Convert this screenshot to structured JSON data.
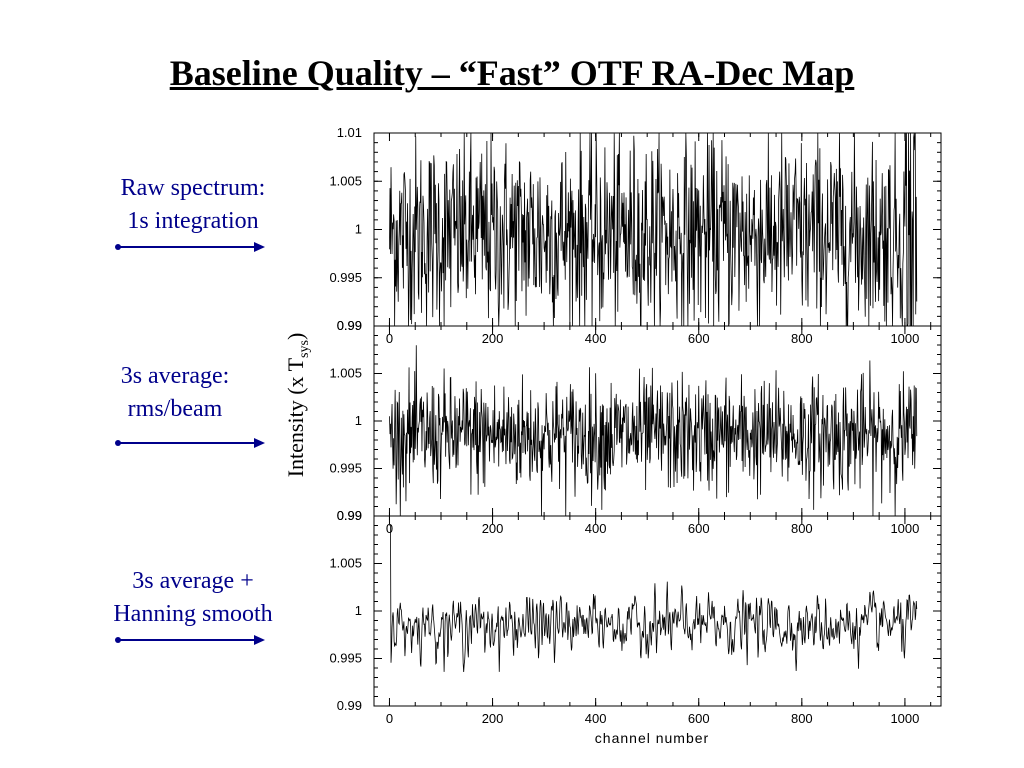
{
  "slide": {
    "title": "Baseline Quality – “Fast” OTF RA-Dec Map"
  },
  "labels": [
    {
      "line1": "Raw spectrum:",
      "line2": "1s integration"
    },
    {
      "line1": "3s average:",
      "line2": "rms/beam"
    },
    {
      "line1": "3s average +",
      "line2": "Hanning smooth"
    }
  ],
  "colors": {
    "label": "#00008b",
    "arrow": "#00008b",
    "trace": "#000000"
  },
  "chart_data": {
    "type": "line",
    "xlabel": "channel number",
    "ylabel_main": "Intensity (x T",
    "ylabel_sub": "sys",
    "ylabel_end": ")",
    "xlim": [
      -30,
      1070
    ],
    "ylim": [
      0.99,
      1.01
    ],
    "xticks": [
      0,
      200,
      400,
      600,
      800,
      1000
    ],
    "xtick_labels": [
      "0",
      "200",
      "400",
      "600",
      "800",
      "1000"
    ],
    "yticks": [
      0.99,
      0.995,
      1.0,
      1.005,
      1.01
    ],
    "ytick_labels": [
      "0.99",
      "0.995",
      "1",
      "1.005",
      "1.01"
    ],
    "overlap_tick_label": "0.99",
    "panels": [
      {
        "name": "Raw spectrum: 1s integration",
        "channels": 1024,
        "mean": 0.9995,
        "rms": 0.005,
        "ylim": [
          0.99,
          1.01
        ]
      },
      {
        "name": "3s average: rms/beam",
        "channels": 1024,
        "mean": 0.9985,
        "rms": 0.003,
        "ylim": [
          0.99,
          1.01
        ]
      },
      {
        "name": "3s average + Hanning smooth",
        "channels": 1024,
        "mean": 0.9985,
        "rms": 0.0015,
        "ylim": [
          0.99,
          1.01
        ]
      }
    ]
  }
}
